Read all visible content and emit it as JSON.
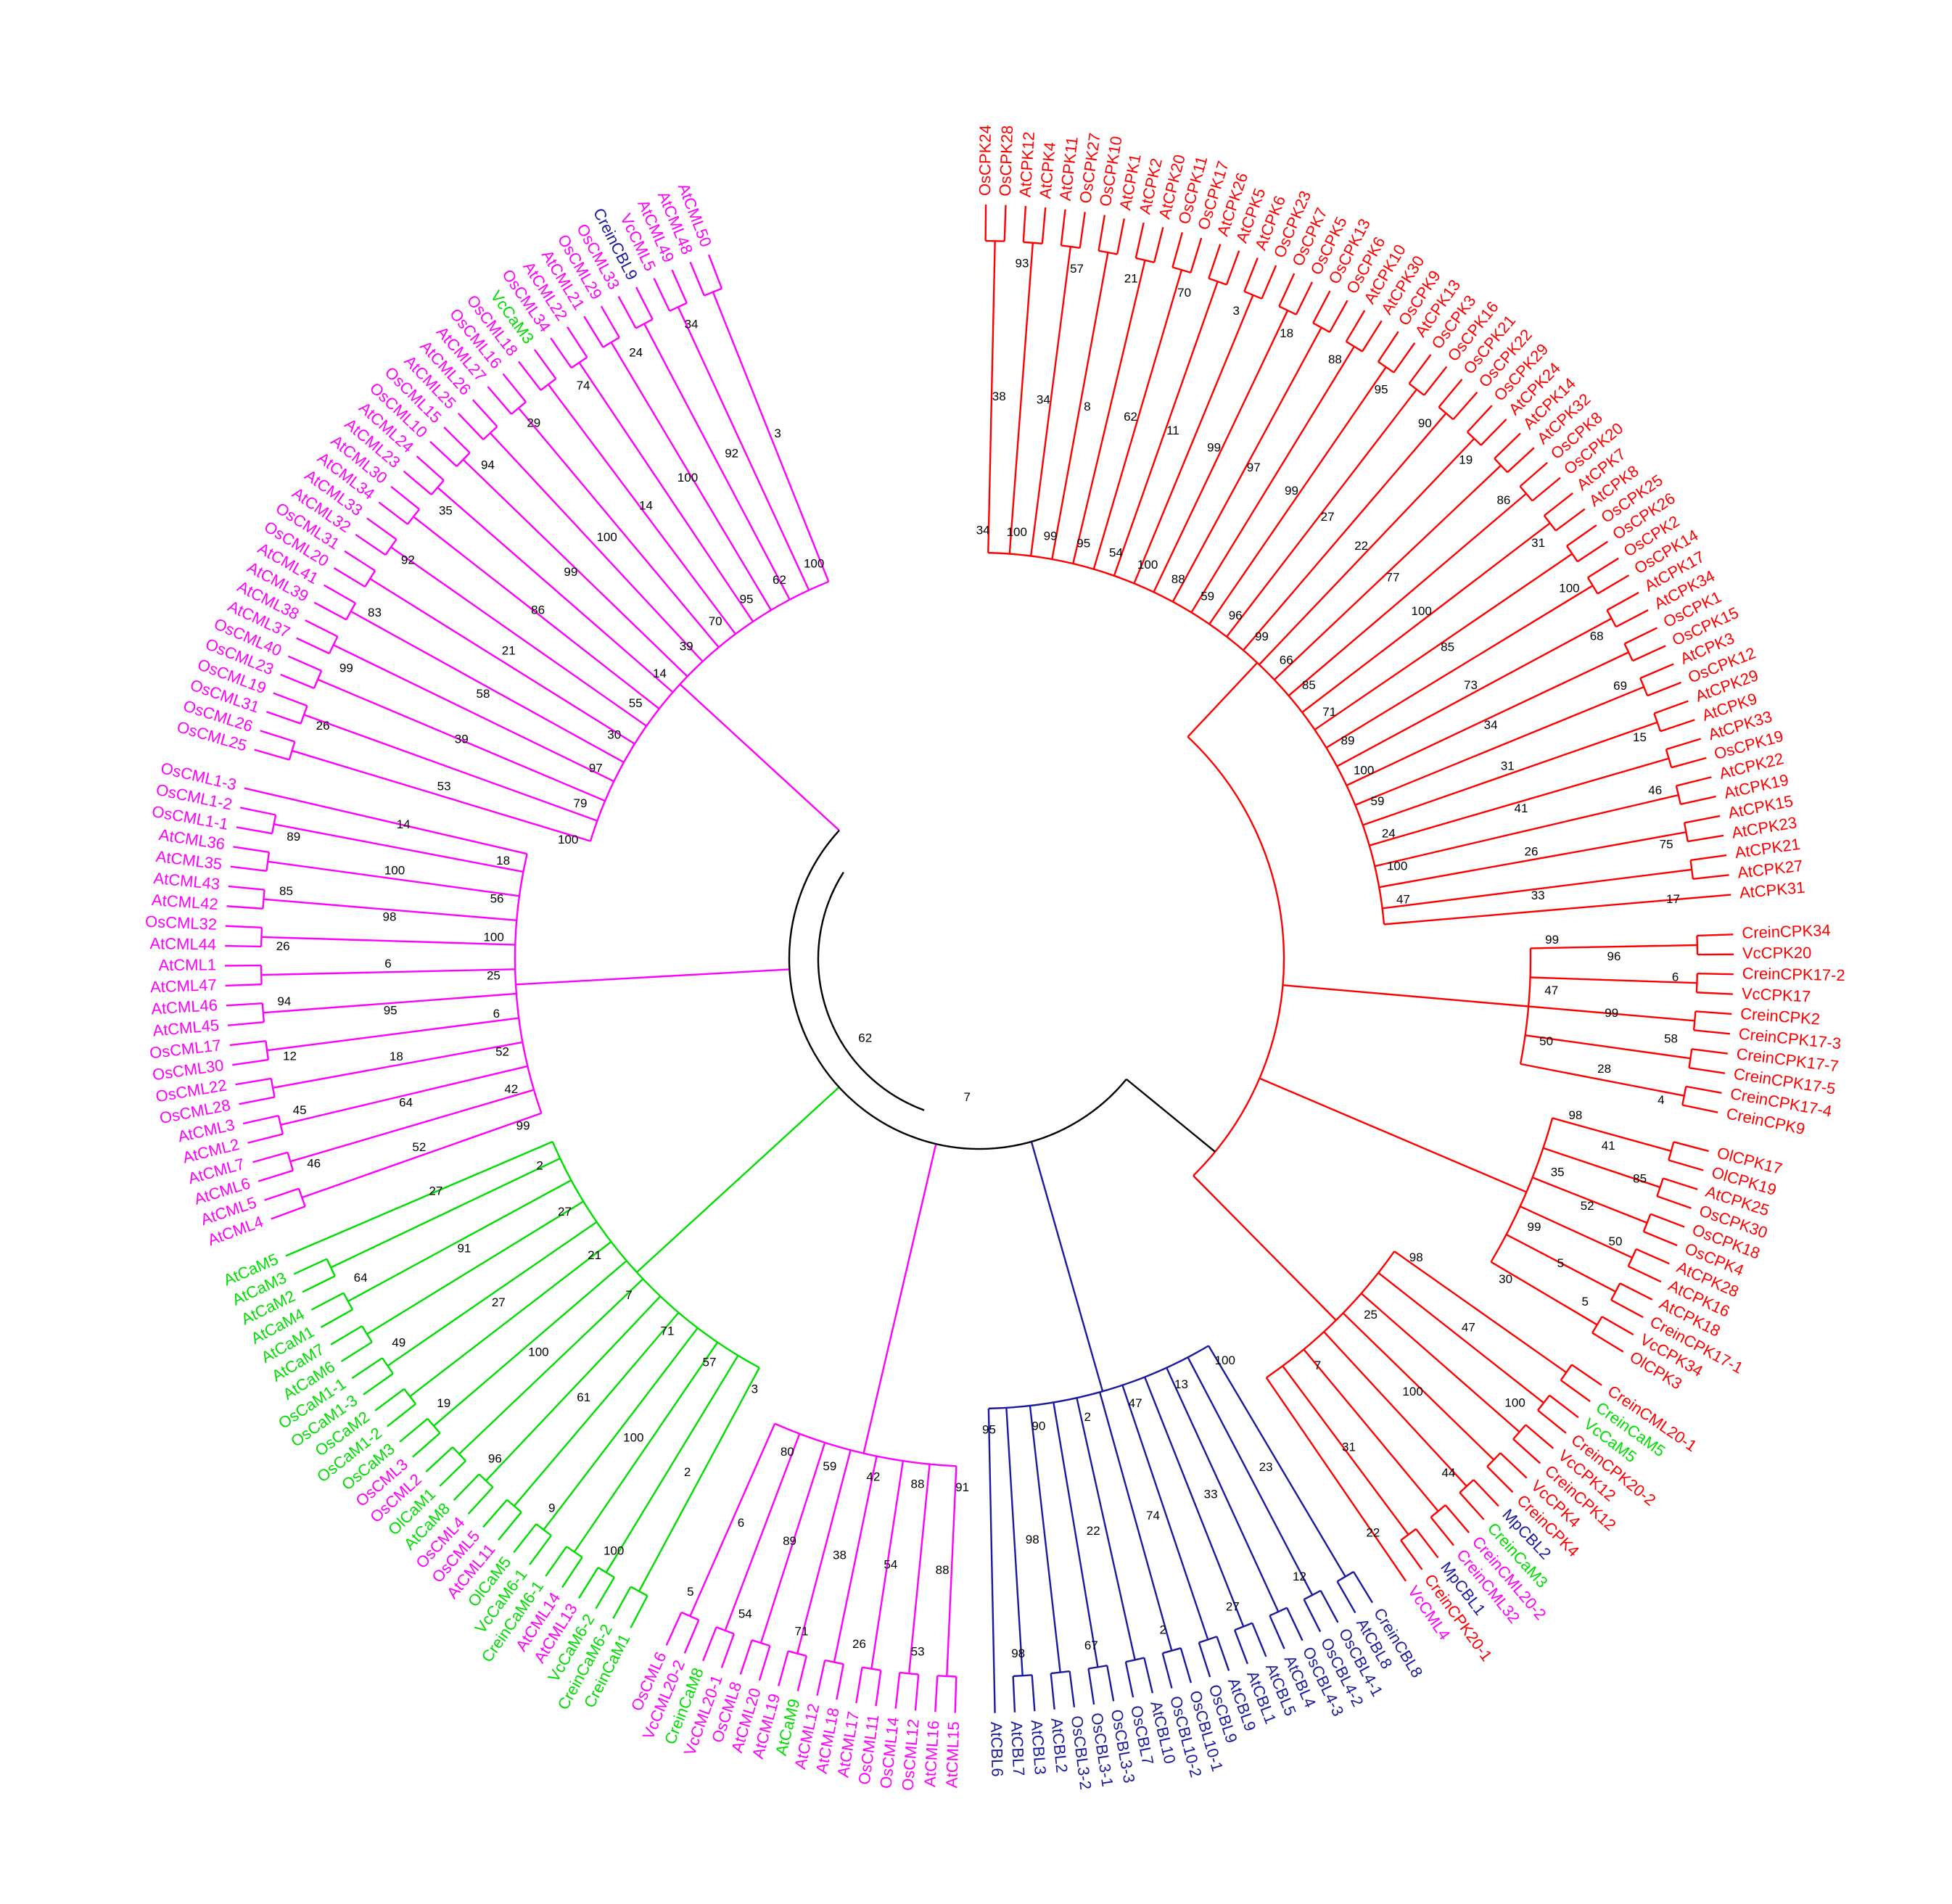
{
  "tree": {
    "backbone_color": "#000000",
    "backbone_supports": [
      62,
      7
    ],
    "clades": [
      {
        "color": "#ff0000",
        "supports": [
          34,
          38,
          93,
          100,
          34,
          57,
          99,
          8,
          21,
          95,
          62,
          70,
          54,
          11,
          3,
          100,
          99,
          18,
          88,
          97,
          88,
          59,
          99,
          95,
          96,
          27,
          90,
          99,
          22,
          19,
          66,
          77,
          86,
          85,
          100,
          31,
          71,
          85,
          100,
          89,
          73,
          68,
          100,
          34,
          69,
          59,
          31,
          15,
          24,
          41,
          46,
          100,
          26,
          75,
          47,
          33,
          17
        ],
        "leaves": [
          "OsCPK24",
          "OsCPK28",
          "AtCPK12",
          "AtCPK4",
          "AtCPK11",
          "OsCPK27",
          "OsCPK10",
          "AtCPK1",
          "AtCPK2",
          "AtCPK20",
          "OsCPK11",
          "OsCPK17",
          "AtCPK26",
          "AtCPK5",
          "AtCPK6",
          "OsCPK23",
          "OsCPK7",
          "OsCPK5",
          "OsCPK13",
          "OsCPK6",
          "AtCPK10",
          "AtCPK30",
          "OsCPK9",
          "AtCPK13",
          "OsCPK3",
          "OsCPK16",
          "OsCPK21",
          "OsCPK22",
          "OsCPK29",
          "AtCPK24",
          "AtCPK14",
          "AtCPK32",
          "OsCPK8",
          "OsCPK20",
          "AtCPK7",
          "AtCPK8",
          "OsCPK25",
          "OsCPK26",
          "OsCPK2",
          "OsCPK14",
          "AtCPK17",
          "AtCPK34",
          "OsCPK1",
          "OsCPK15",
          "AtCPK3",
          "OsCPK12",
          "AtCPK29",
          "AtCPK9",
          "AtCPK33",
          "OsCPK19",
          "AtCPK22",
          "AtCPK19",
          "AtCPK15",
          "AtCPK23",
          "AtCPK21",
          "AtCPK27",
          "AtCPK31"
        ]
      },
      {
        "color": "#ff0000",
        "supports": [
          99,
          96,
          6,
          47,
          99,
          58,
          50,
          28,
          4
        ],
        "leaves": [
          "CreinCPK34",
          "VcCPK20",
          "CreinCPK17-2",
          "VcCPK17",
          "CreinCPK2",
          "CreinCPK17-3",
          "CreinCPK17-7",
          "CreinCPK17-5",
          "CreinCPK17-4",
          "CreinCPK9"
        ]
      },
      {
        "color": "#ff0000",
        "supports": [
          98,
          41,
          85,
          35,
          52,
          50,
          99,
          5,
          5,
          30
        ],
        "leaves": [
          "OlCPK17",
          "OlCPK19",
          "AtCPK25",
          "OsCPK30",
          "OsCPK18",
          "OsCPK4",
          "AtCPK28",
          "AtCPK16",
          "AtCPK18",
          "CreinCPK17-1",
          "VcCPK34",
          "OlCPK3"
        ]
      },
      {
        "color": "#ff0000",
        "supports": [
          98,
          47,
          100,
          25,
          100,
          44,
          7,
          31,
          22
        ],
        "leaves": [
          "CreinCML20-1",
          {
            "label": "CreinCaM5",
            "color": "#00dd00"
          },
          {
            "label": "VcCaM5",
            "color": "#00dd00"
          },
          "CreinCPK20-2",
          "VcCPK12",
          "CreinCPK12",
          "VcCPK4",
          "CreinCPK4",
          {
            "label": "MpCBL2",
            "color": "#1a1aa0"
          },
          {
            "label": "CreinCaM3",
            "color": "#00dd00"
          },
          {
            "label": "CreinCML20-2",
            "color": "#ff00ff"
          },
          {
            "label": "CreinCML32",
            "color": "#ff00ff"
          },
          {
            "label": "MpCBL1",
            "color": "#1a1aa0"
          },
          "CreinCPK20-1",
          {
            "label": "VcCML4",
            "color": "#ff00ff"
          }
        ]
      },
      {
        "color": "#1a1aa0",
        "supports": [
          100,
          23,
          12,
          13,
          33,
          27,
          47,
          74,
          2,
          2,
          22,
          67,
          90,
          98,
          98,
          95
        ],
        "leaves": [
          "CreinCBL8",
          "AtCBL8",
          "OsCBL4-1",
          "OsCBL4-2",
          "OsCBL4-3",
          "AtCBL4",
          "AtCBL5",
          "AtCBL1",
          "AtCBL9",
          "OsCBL9",
          "OsCBL10-1",
          "OsCBL10-2",
          "AtCBL10",
          "OsCBL7",
          "OsCBL3-3",
          "OsCBL3-1",
          "OsCBL3-2",
          "AtCBL2",
          "AtCBL3",
          "AtCBL7",
          "AtCBL6"
        ]
      },
      {
        "color": "#ff00ff",
        "supports": [
          91,
          88,
          53,
          88,
          54,
          26,
          42,
          38,
          71,
          59,
          89,
          54,
          80,
          6,
          5
        ],
        "leaves": [
          "AtCML15",
          "AtCML16",
          "OsCML12",
          "OsCML14",
          "OsCML11",
          "AtCML17",
          "AtCML18",
          "AtCML12",
          {
            "label": "AtCaM9",
            "color": "#00dd00"
          },
          "AtCML19",
          "AtCML20",
          "OsCML8",
          "VcCML20-1",
          {
            "label": "CreinCaM8",
            "color": "#00dd00"
          },
          "VcCML20-2",
          "OsCML6"
        ]
      },
      {
        "color": "#00dd00",
        "supports": [
          3,
          2,
          100,
          57,
          100,
          9,
          71,
          61,
          96,
          7,
          100,
          19,
          21,
          27,
          49,
          27,
          91,
          64,
          2,
          27
        ],
        "leaves": [
          "CreinCaM1",
          "CreinCaM6-2",
          "VcCaM6-2",
          {
            "label": "AtCML13",
            "color": "#ff00ff"
          },
          {
            "label": "AtCML14",
            "color": "#ff00ff"
          },
          "CreinCaM6-1",
          "VcCaM6-1",
          "OlCaM5",
          {
            "label": "AtCML11",
            "color": "#ff00ff"
          },
          {
            "label": "OsCML5",
            "color": "#ff00ff"
          },
          {
            "label": "OsCML4",
            "color": "#ff00ff"
          },
          "AtCaM8",
          "OlCaM1",
          {
            "label": "OsCML2",
            "color": "#ff00ff"
          },
          {
            "label": "OsCML3",
            "color": "#ff00ff"
          },
          "OsCaM3",
          "OsCaM1-2",
          "OsCaM2",
          "OsCaM1-3",
          "OsCaM1-1",
          "AtCaM6",
          "AtCaM7",
          "AtCaM1",
          "AtCaM4",
          "AtCaM2",
          "AtCaM3",
          "AtCaM5"
        ]
      },
      {
        "color": "#ff00ff",
        "supports": [
          99,
          52,
          46,
          42,
          64,
          45,
          52,
          18,
          12,
          6,
          95,
          94,
          25,
          6,
          26,
          100,
          98,
          85,
          56,
          100,
          89,
          18,
          14
        ],
        "leaves": [
          "AtCML4",
          "AtCML5",
          "AtCML6",
          "AtCML7",
          "AtCML2",
          "AtCML3",
          "OsCML28",
          "OsCML22",
          "OsCML30",
          "OsCML17",
          "AtCML45",
          "AtCML46",
          "AtCML47",
          "AtCML1",
          "AtCML44",
          "OsCML32",
          "AtCML42",
          "AtCML43",
          "AtCML35",
          "AtCML36",
          "OsCML1-1",
          "OsCML1-2",
          "OsCML1-3"
        ]
      },
      {
        "color": "#ff00ff",
        "supports": [
          100,
          53,
          26,
          79,
          39,
          99,
          97,
          58,
          83,
          30,
          21,
          92,
          55,
          86,
          35,
          14,
          99,
          94,
          39,
          100,
          29,
          70,
          14,
          74,
          95,
          100,
          24,
          62,
          92,
          34,
          100,
          3
        ],
        "leaves": [
          "OsCML25",
          "OsCML26",
          "OsCML31",
          "OsCML19",
          "OsCML23",
          "OsCML40",
          "AtCML37",
          "AtCML38",
          "AtCML39",
          "AtCML41",
          "OsCML20",
          "OsCML31",
          "AtCML32",
          "AtCML33",
          "AtCML34",
          "AtCML30",
          "AtCML23",
          "AtCML24",
          "OsCML10",
          "OsCML15",
          "AtCML25",
          "AtCML26",
          "AtCML27",
          "OsCML16",
          "OsCML18",
          {
            "label": "VcCaM3",
            "color": "#00dd00"
          },
          "OsCML34",
          "AtCML22",
          "AtCML21",
          "OsCML29",
          "OsCML33",
          {
            "label": "CreinCBL9",
            "color": "#1a1aa0"
          },
          "VcCML5",
          "AtCML49",
          "AtCML48",
          "AtCML50"
        ]
      }
    ]
  }
}
